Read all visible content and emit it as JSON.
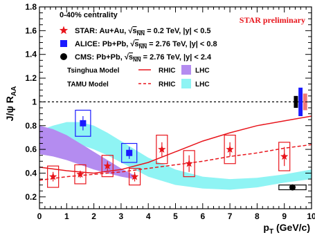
{
  "chart_data": {
    "type": "scatter",
    "xlim": [
      0,
      10
    ],
    "ylim": [
      0.1,
      1.8
    ],
    "x_ticks": [
      "0",
      "1",
      "2",
      "3",
      "4",
      "5",
      "6",
      "7",
      "8",
      "9",
      "10"
    ],
    "y_ticks": [
      "0.2",
      "0.4",
      "0.6",
      "0.8",
      "1",
      "1.2",
      "1.4",
      "1.6",
      "1.8"
    ],
    "x_tick_values": [
      0,
      1,
      2,
      3,
      4,
      5,
      6,
      7,
      8,
      9,
      10
    ],
    "y_tick_values": [
      0.2,
      0.4,
      0.6,
      0.8,
      1.0,
      1.2,
      1.4,
      1.6,
      1.8
    ],
    "xlabel": {
      "main": "p",
      "sub": "T",
      "rest": " (GeV/c)"
    },
    "ylabel": {
      "main": "J/ψ R",
      "sub": "AA"
    },
    "reference_line_y": 1.0,
    "annotation": "STAR preliminary",
    "legend": {
      "header": "0-40% centrality",
      "star": {
        "pre": "STAR:  Au+Au, ",
        "root": "s",
        "sub": "NN",
        "post": " = 0.2 TeV,  |y| < 0.5"
      },
      "alice": {
        "pre": "ALICE: Pb+Pb, ",
        "root": "s",
        "sub": "NN",
        "post": " = 2.76 TeV, |y| < 0.8"
      },
      "cms": {
        "pre": "CMS:   Pb+Pb, ",
        "root": "s",
        "sub": "NN",
        "post": " = 2.76 TeV, |y| < 2.4"
      },
      "tsinghua": "Tsinghua Model",
      "tamu": "TAMU Model",
      "rhic": "RHIC",
      "lhc": "LHC"
    },
    "colors": {
      "star": "#e8141b",
      "alice": "#1a1aff",
      "cms": "#000000",
      "tsinghua_lhc": "#b48cf0",
      "tamu_lhc": "#8ff4f4",
      "rhic_line": "#e8141b"
    },
    "series": [
      {
        "name": "STAR",
        "points": [
          {
            "x": 0.5,
            "y": 0.37,
            "stat": 0.04,
            "sys": 0.09
          },
          {
            "x": 1.5,
            "y": 0.39,
            "stat": 0.03,
            "sys": 0.08
          },
          {
            "x": 2.5,
            "y": 0.46,
            "stat": 0.04,
            "sys": 0.09
          },
          {
            "x": 3.5,
            "y": 0.37,
            "stat": 0.04,
            "sys": 0.07
          },
          {
            "x": 4.5,
            "y": 0.6,
            "stat": 0.06,
            "sys": 0.12
          },
          {
            "x": 5.5,
            "y": 0.48,
            "stat": 0.07,
            "sys": 0.11
          },
          {
            "x": 7.0,
            "y": 0.6,
            "stat": 0.06,
            "sys": 0.12
          },
          {
            "x": 9.0,
            "y": 0.54,
            "stat": 0.08,
            "sys": 0.12
          }
        ]
      },
      {
        "name": "ALICE",
        "points": [
          {
            "x": 1.6,
            "y": 0.82,
            "stat": 0.06,
            "sys": 0.11
          },
          {
            "x": 3.3,
            "y": 0.57,
            "stat": 0.05,
            "sys": 0.08
          }
        ]
      },
      {
        "name": "CMS",
        "points": [
          {
            "x": 9.3,
            "y": 0.28,
            "xerr": 0.5,
            "sys": 0.02
          }
        ]
      }
    ],
    "global_uncertainties": [
      {
        "x": 9.35,
        "ylow": 0.95,
        "yhigh": 1.05,
        "color": "#000000",
        "width": 0.15
      },
      {
        "x": 9.52,
        "ylow": 0.88,
        "yhigh": 1.12,
        "color": "#1a1aff",
        "width": 0.15
      },
      {
        "x": 9.69,
        "ylow": 0.93,
        "yhigh": 1.07,
        "color": "#f07878",
        "width": 0.15
      }
    ],
    "tsinghua_rhic": {
      "x": [
        0,
        1,
        2,
        3,
        4,
        5,
        6,
        7,
        8,
        9,
        10
      ],
      "y": [
        0.45,
        0.42,
        0.4,
        0.43,
        0.49,
        0.58,
        0.67,
        0.74,
        0.8,
        0.84,
        0.88
      ]
    },
    "tamu_rhic": {
      "x": [
        0,
        1,
        2,
        3,
        4,
        5,
        6,
        7,
        8,
        9,
        10
      ],
      "y": [
        0.34,
        0.37,
        0.39,
        0.41,
        0.44,
        0.47,
        0.5,
        0.54,
        0.57,
        0.61,
        0.64
      ]
    },
    "tsinghua_lhc_band": {
      "x": [
        0,
        0.5,
        1,
        1.5,
        2,
        2.5,
        3,
        3.5
      ],
      "low": [
        0.56,
        0.54,
        0.51,
        0.47,
        0.43,
        0.4,
        0.37,
        0.35
      ],
      "high": [
        0.8,
        0.77,
        0.72,
        0.65,
        0.58,
        0.51,
        0.44,
        0.38
      ]
    },
    "tamu_lhc_band": {
      "x": [
        0,
        0.5,
        1,
        1.5,
        2,
        2.5,
        3,
        3.5,
        4,
        5,
        6,
        7,
        8,
        9,
        10
      ],
      "low": [
        0.62,
        0.65,
        0.66,
        0.64,
        0.6,
        0.55,
        0.49,
        0.43,
        0.37,
        0.3,
        0.27,
        0.26,
        0.28,
        0.32,
        0.35
      ],
      "high": [
        0.76,
        0.8,
        0.83,
        0.83,
        0.8,
        0.74,
        0.67,
        0.6,
        0.53,
        0.43,
        0.37,
        0.35,
        0.36,
        0.39,
        0.43
      ]
    }
  }
}
